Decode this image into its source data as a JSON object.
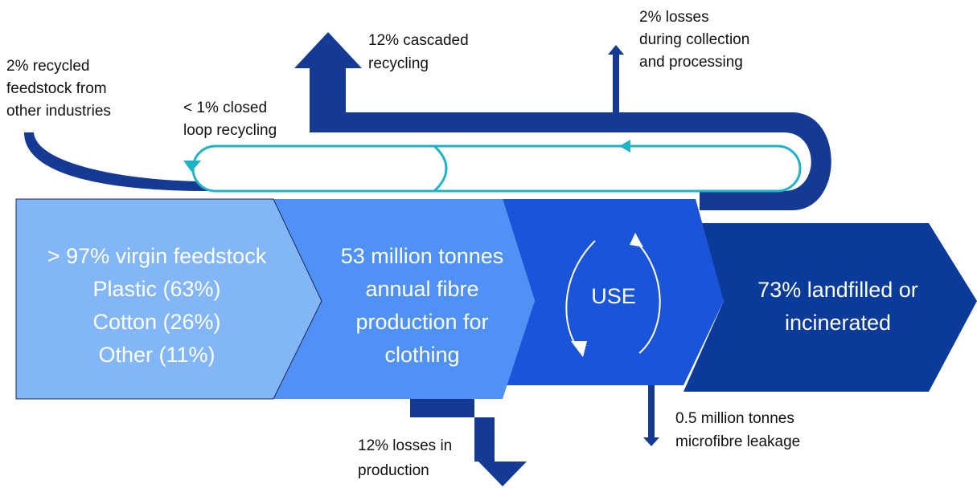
{
  "stages": [
    {
      "lines": [
        "> 97% virgin feedstock",
        "Plastic (63%)",
        "Cotton (26%)",
        "Other (11%)"
      ]
    },
    {
      "lines": [
        "53 million tonnes",
        "annual fibre",
        "production for",
        "clothing"
      ]
    },
    {
      "lines": [
        "USE"
      ]
    },
    {
      "lines": [
        "73% landfilled or",
        "incinerated"
      ]
    }
  ],
  "flows": [
    {
      "lines": [
        "2% recycled",
        "feedstock from",
        "other industries"
      ]
    },
    {
      "lines": [
        "< 1% closed",
        "loop recycling"
      ]
    },
    {
      "lines": [
        "12% cascaded",
        "recycling"
      ]
    },
    {
      "lines": [
        "2% losses",
        "during collection",
        "and processing"
      ]
    },
    {
      "lines": [
        "12% losses in",
        "production"
      ]
    },
    {
      "lines": [
        "0.5 million tonnes",
        "microfibre leakage"
      ]
    }
  ]
}
